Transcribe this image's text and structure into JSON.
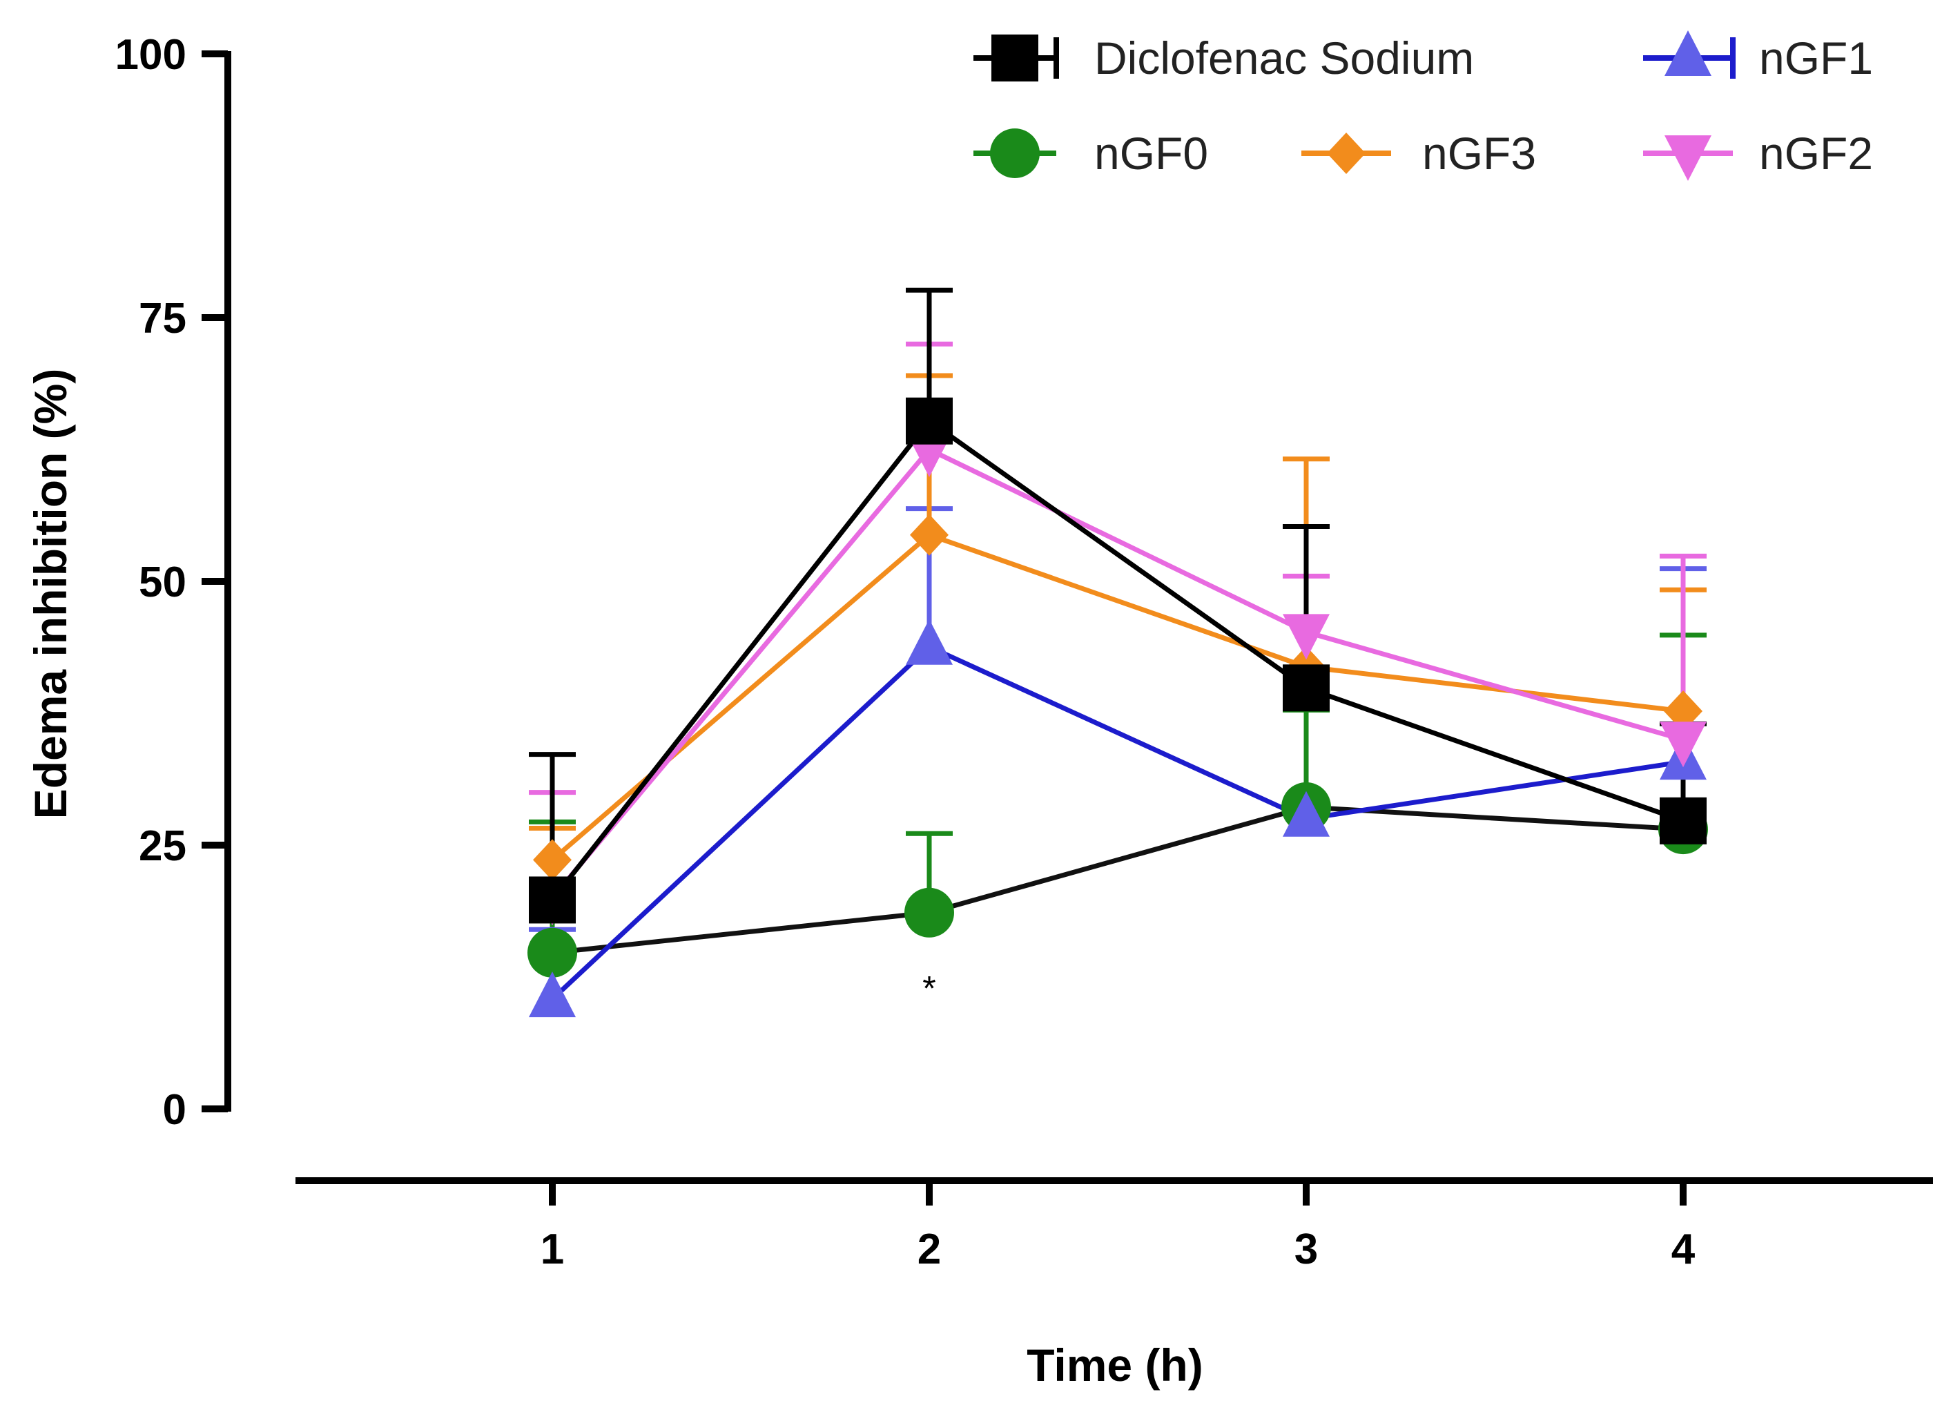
{
  "chart_data": {
    "type": "line",
    "title": "",
    "xlabel": "Time (h)",
    "ylabel": "Edema inhibition (%)",
    "x": [
      1,
      2,
      3,
      4
    ],
    "x_tick_labels": [
      "1",
      "2",
      "3",
      "4"
    ],
    "ylim": [
      0,
      100
    ],
    "y_ticks": [
      0,
      25,
      50,
      75,
      100
    ],
    "y_tick_labels": [
      "0",
      "25",
      "50",
      "75",
      "100"
    ],
    "grid": false,
    "legend_position": "top-right",
    "series": [
      {
        "name": "Diclofenac Sodium",
        "color": "#000000",
        "marker": "square",
        "values": [
          19.8,
          65.2,
          39.9,
          27.3
        ],
        "error_upper": [
          33.6,
          77.6,
          55.2,
          36.5
        ]
      },
      {
        "name": "nGF1",
        "color": "#1c1ccc",
        "marker_color": "#6060e8",
        "marker": "triangle-up",
        "values": [
          10.4,
          43.8,
          27.5,
          32.9
        ],
        "error_upper": [
          17.0,
          56.9,
          27.5,
          51.2
        ]
      },
      {
        "name": "nGF0",
        "color": "#111111",
        "marker_color": "#1a8a1a",
        "marker": "circle",
        "values": [
          14.8,
          18.6,
          28.6,
          26.5
        ],
        "error_upper": [
          27.2,
          26.1,
          37.8,
          44.9
        ]
      },
      {
        "name": "nGF3",
        "color": "#f28c1c",
        "marker": "diamond",
        "values": [
          23.6,
          54.4,
          41.9,
          37.7
        ],
        "error_upper": [
          26.6,
          69.5,
          61.6,
          49.2
        ]
      },
      {
        "name": "nGF2",
        "color": "#e86ae0",
        "marker": "triangle-down",
        "values": [
          20.0,
          62.5,
          45.2,
          35.0
        ],
        "error_upper": [
          30.0,
          72.5,
          50.5,
          52.4
        ]
      }
    ],
    "annotations": [
      {
        "text": "*",
        "x": 2,
        "y": 12
      }
    ]
  }
}
